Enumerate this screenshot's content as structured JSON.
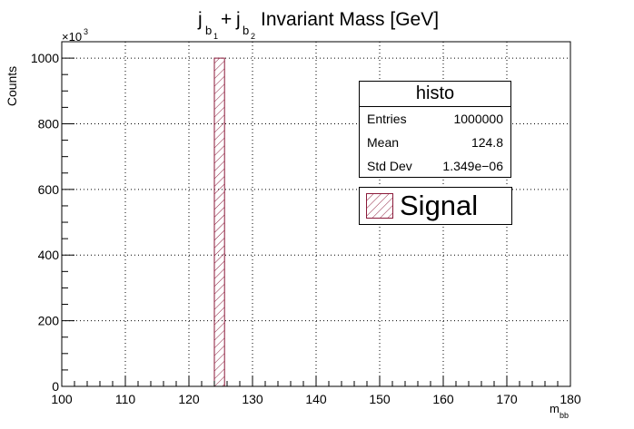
{
  "chart_data": {
    "type": "bar",
    "title_parts": {
      "j1": "j",
      "b1": "b",
      "n1": "1",
      "plus": "+",
      "j2": "j",
      "b2": "b",
      "n2": "2",
      "rest": "Invariant Mass [GeV]"
    },
    "xlabel_main": "m",
    "xlabel_sub": "bb",
    "ylabel": "Counts",
    "y_multiplier_base": "×10",
    "y_multiplier_exp": "3",
    "xlim": [
      100,
      180
    ],
    "ylim": [
      0,
      1050
    ],
    "x_ticks": [
      100,
      110,
      120,
      130,
      140,
      150,
      160,
      170,
      180
    ],
    "y_ticks": [
      0,
      200,
      400,
      600,
      800,
      1000
    ],
    "bins": [
      {
        "x_low": 124,
        "x_high": 125.6,
        "value": 1000
      }
    ],
    "grid": true,
    "colors": {
      "signal": "#8b1a3a",
      "axis": "#000000",
      "grid": "#000000"
    }
  },
  "stats": {
    "title": "histo",
    "rows": [
      {
        "label": "Entries",
        "value": "1000000"
      },
      {
        "label": "Mean",
        "value": "124.8"
      },
      {
        "label": "Std Dev",
        "value": "1.349e−06"
      }
    ]
  },
  "legend": {
    "entries": [
      {
        "label": "Signal"
      }
    ]
  }
}
